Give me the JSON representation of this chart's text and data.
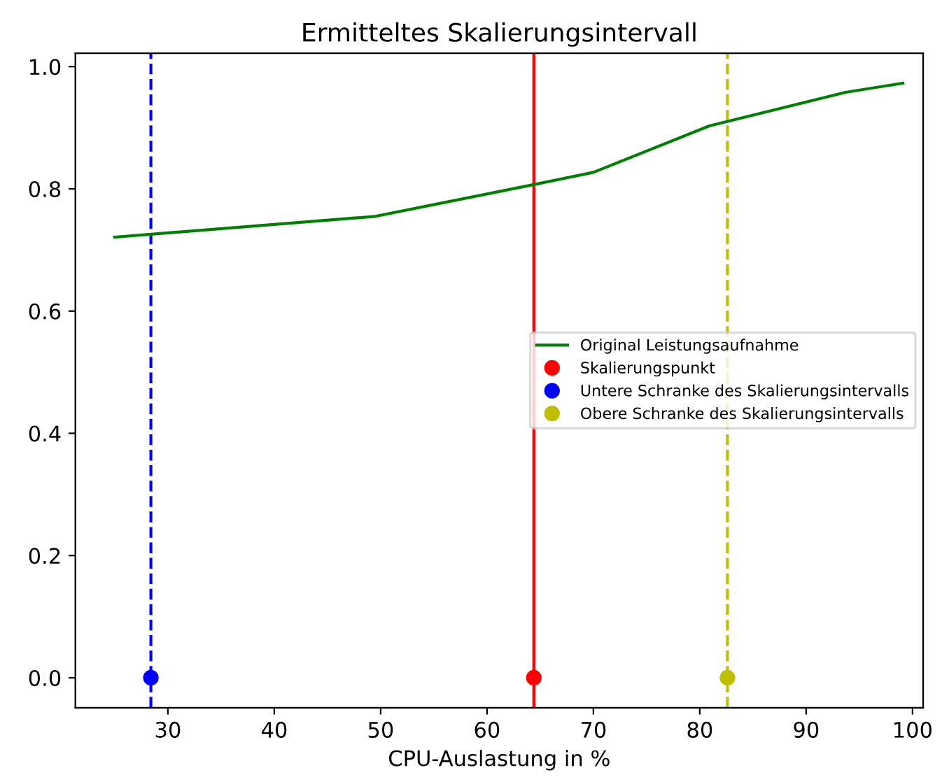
{
  "chart_data": {
    "type": "line",
    "title": "Ermitteltes Skalierungsintervall",
    "xlabel": "CPU-Auslastung in %",
    "series": [
      {
        "name": "Original Leistungsaufnahme",
        "color": "#008000",
        "marker": "none",
        "x": [
          25,
          49.5,
          64.4,
          70,
          80.9,
          93.7,
          99.1
        ],
        "values": [
          0.721,
          0.755,
          0.807,
          0.827,
          0.903,
          0.958,
          0.973
        ]
      },
      {
        "name": "Skalierungspunkt",
        "type": "scatter",
        "color": "#ff0000",
        "marker": "circle",
        "x": [
          64.4
        ],
        "values": [
          0
        ]
      },
      {
        "name": "Untere Schranke des Skalierungsintervalls",
        "type": "scatter",
        "color": "#0000ff",
        "marker": "circle",
        "x": [
          28.4
        ],
        "values": [
          0
        ]
      },
      {
        "name": "Obere Schranke des Skalierungsintervalls",
        "type": "scatter",
        "color": "#bfbf00",
        "marker": "circle",
        "x": [
          82.6
        ],
        "values": [
          0
        ]
      }
    ],
    "ref_lines": [
      {
        "axis": "x",
        "value": 28.4,
        "color": "#0000ff",
        "line_style": "dashed"
      },
      {
        "axis": "x",
        "value": 64.4,
        "color": "#ff0000",
        "line_style": "solid"
      },
      {
        "axis": "x",
        "value": 82.6,
        "color": "#bfbf00",
        "line_style": "dashed"
      }
    ],
    "xlim": [
      21.3,
      101
    ],
    "xticks": [
      30,
      40,
      50,
      60,
      70,
      80,
      90,
      100
    ],
    "ylim": [
      -0.049,
      1.022
    ],
    "yticks": [
      {
        "value": 0,
        "label": "0.0"
      },
      {
        "value": 0.2,
        "label": "0.2"
      },
      {
        "value": 0.4,
        "label": "0.4"
      },
      {
        "value": 0.6,
        "label": "0.6"
      },
      {
        "value": 0.8,
        "label": "0.8"
      },
      {
        "value": 1.0,
        "label": "1.0"
      }
    ],
    "grid": false,
    "legend": "center right"
  }
}
